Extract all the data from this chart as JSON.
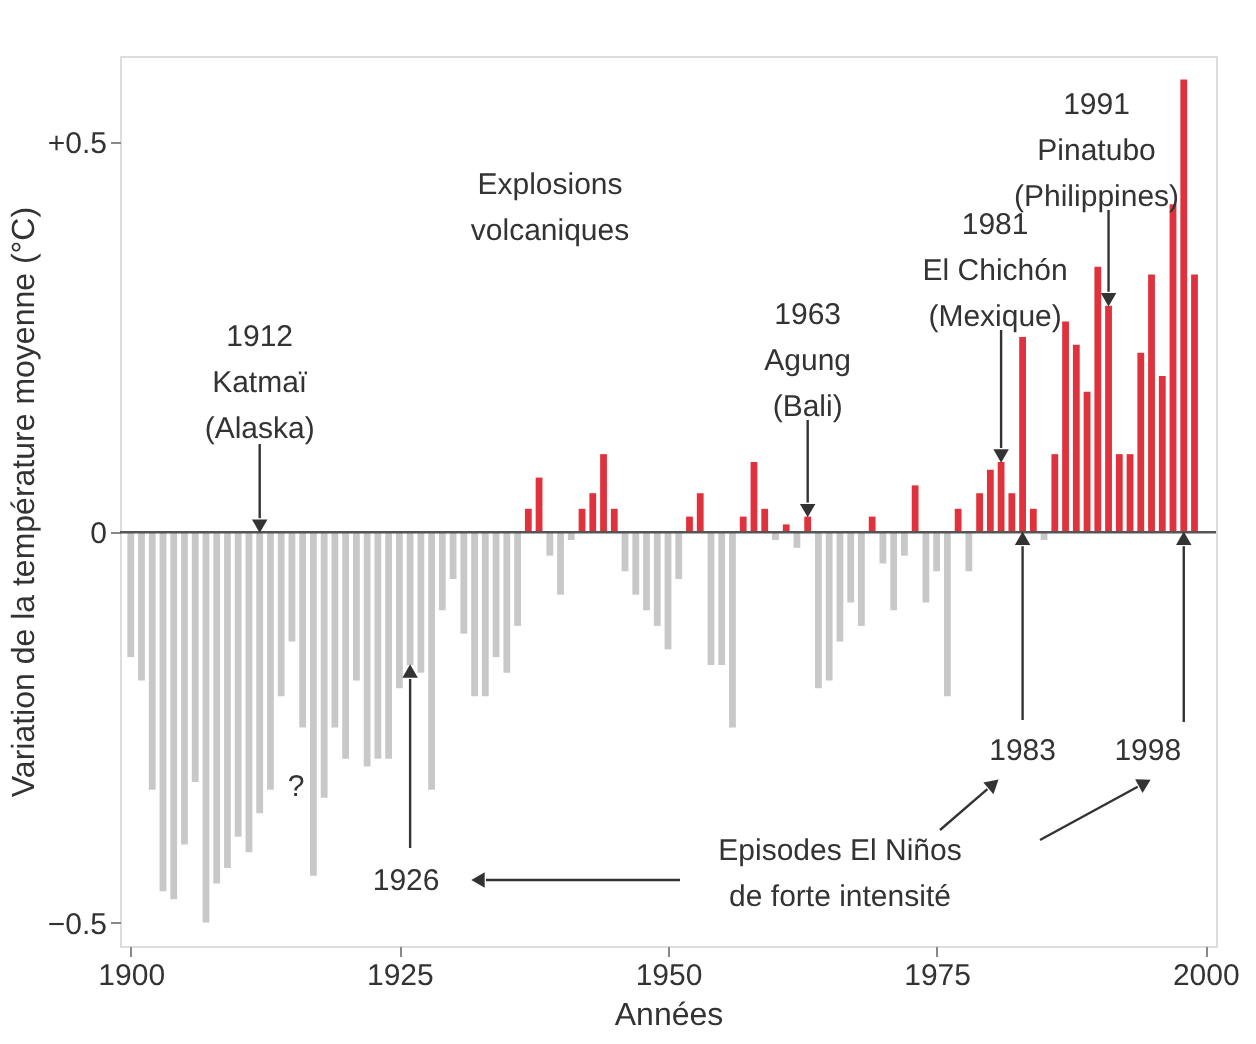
{
  "chart_data": {
    "type": "bar",
    "xlabel": "Années",
    "ylabel": "Variation de la température moyenne (°C)",
    "x": [
      1900,
      1901,
      1902,
      1903,
      1904,
      1905,
      1906,
      1907,
      1908,
      1909,
      1910,
      1911,
      1912,
      1913,
      1914,
      1915,
      1916,
      1917,
      1918,
      1919,
      1920,
      1921,
      1922,
      1923,
      1924,
      1925,
      1926,
      1927,
      1928,
      1929,
      1930,
      1931,
      1932,
      1933,
      1934,
      1935,
      1936,
      1937,
      1938,
      1939,
      1940,
      1941,
      1942,
      1943,
      1944,
      1945,
      1946,
      1947,
      1948,
      1949,
      1950,
      1951,
      1952,
      1953,
      1954,
      1955,
      1956,
      1957,
      1958,
      1959,
      1960,
      1961,
      1962,
      1963,
      1964,
      1965,
      1966,
      1967,
      1968,
      1969,
      1970,
      1971,
      1972,
      1973,
      1974,
      1975,
      1976,
      1977,
      1978,
      1979,
      1980,
      1981,
      1982,
      1983,
      1984,
      1985,
      1986,
      1987,
      1988,
      1989,
      1990,
      1991,
      1992,
      1993,
      1994,
      1995,
      1996,
      1997,
      1998,
      1999
    ],
    "values": [
      -0.16,
      -0.19,
      -0.33,
      -0.46,
      -0.47,
      -0.4,
      -0.32,
      -0.5,
      -0.45,
      -0.43,
      -0.39,
      -0.41,
      -0.36,
      -0.33,
      -0.21,
      -0.14,
      -0.25,
      -0.44,
      -0.34,
      -0.25,
      -0.29,
      -0.19,
      -0.3,
      -0.29,
      -0.29,
      -0.2,
      -0.17,
      -0.18,
      -0.33,
      -0.1,
      -0.06,
      -0.13,
      -0.21,
      -0.21,
      -0.16,
      -0.18,
      -0.12,
      0.03,
      0.07,
      -0.03,
      -0.08,
      -0.01,
      0.03,
      0.05,
      0.1,
      0.03,
      -0.05,
      -0.08,
      -0.1,
      -0.12,
      -0.15,
      -0.06,
      0.02,
      0.05,
      -0.17,
      -0.17,
      -0.25,
      0.02,
      0.09,
      0.03,
      -0.01,
      0.01,
      -0.02,
      0.02,
      -0.2,
      -0.19,
      -0.14,
      -0.09,
      -0.12,
      0.02,
      -0.04,
      -0.1,
      -0.03,
      0.06,
      -0.09,
      -0.05,
      -0.21,
      0.03,
      -0.05,
      0.05,
      0.08,
      0.09,
      0.05,
      0.25,
      0.03,
      -0.01,
      0.1,
      0.27,
      0.24,
      0.18,
      0.34,
      0.29,
      0.1,
      0.1,
      0.23,
      0.33,
      0.2,
      0.42,
      0.58,
      0.33
    ],
    "colors": [
      "#c8c8c8",
      "#c8c8c8",
      "#c8c8c8",
      "#c8c8c8",
      "#c8c8c8",
      "#c8c8c8",
      "#c8c8c8",
      "#c8c8c8",
      "#c8c8c8",
      "#c8c8c8",
      "#c8c8c8",
      "#c8c8c8",
      "#c8c8c8",
      "#c8c8c8",
      "#c8c8c8",
      "#c8c8c8",
      "#c8c8c8",
      "#c8c8c8",
      "#c8c8c8",
      "#c8c8c8",
      "#c8c8c8",
      "#c8c8c8",
      "#c8c8c8",
      "#c8c8c8",
      "#c8c8c8",
      "#c8c8c8",
      "#c8c8c8",
      "#c8c8c8",
      "#c8c8c8",
      "#c8c8c8",
      "#c8c8c8",
      "#c8c8c8",
      "#c8c8c8",
      "#c8c8c8",
      "#c8c8c8",
      "#c8c8c8",
      "#c8c8c8",
      "#e0323c",
      "#e0323c",
      "#c8c8c8",
      "#c8c8c8",
      "#c8c8c8",
      "#e0323c",
      "#e0323c",
      "#e0323c",
      "#e0323c",
      "#c8c8c8",
      "#c8c8c8",
      "#c8c8c8",
      "#c8c8c8",
      "#c8c8c8",
      "#c8c8c8",
      "#e0323c",
      "#e0323c",
      "#c8c8c8",
      "#c8c8c8",
      "#c8c8c8",
      "#e0323c",
      "#e0323c",
      "#e0323c",
      "#c8c8c8",
      "#e0323c",
      "#c8c8c8",
      "#e0323c",
      "#c8c8c8",
      "#c8c8c8",
      "#c8c8c8",
      "#c8c8c8",
      "#c8c8c8",
      "#e0323c",
      "#c8c8c8",
      "#c8c8c8",
      "#c8c8c8",
      "#e0323c",
      "#c8c8c8",
      "#c8c8c8",
      "#c8c8c8",
      "#e0323c",
      "#c8c8c8",
      "#e0323c",
      "#e0323c",
      "#e0323c",
      "#e0323c",
      "#e0323c",
      "#e0323c",
      "#c8c8c8",
      "#e0323c",
      "#e0323c",
      "#e0323c",
      "#e0323c",
      "#e0323c",
      "#e0323c",
      "#e0323c",
      "#e0323c",
      "#e0323c",
      "#e0323c",
      "#e0323c",
      "#e0323c",
      "#e0323c",
      "#e0323c"
    ],
    "xlim": [
      1899,
      2001
    ],
    "xticks": [
      1900,
      1925,
      1950,
      1975,
      2000
    ],
    "ylim": [
      -0.53,
      0.61
    ],
    "yticks": [
      {
        "value": 0.5,
        "label": "+0.5"
      },
      {
        "value": 0,
        "label": "0"
      },
      -0.5
    ],
    "grid": false,
    "ref_lines": [
      {
        "axis": "y",
        "value": 0,
        "color": "#555555"
      }
    ],
    "annotations": [
      "Explosions\nvolcaniques",
      {
        "text": "1912\nKatmaï\n(Alaska)",
        "x": 1912,
        "y": 0
      },
      {
        "text": "1963\nAgung\n(Bali)",
        "x": 1963,
        "y": 0.02
      },
      {
        "text": "1981\nEl Chichón\n(Mexique)",
        "x": 1981,
        "y": 0.09
      },
      {
        "text": "1991\nPinatubo\n(Philippines)",
        "x": 1991,
        "y": 0.29
      },
      {
        "text": "1983",
        "x": 1983,
        "y": 0
      },
      {
        "text": "1998",
        "x": 1998,
        "y": 0
      },
      {
        "text": "1926",
        "x": 1926,
        "y": -0.17
      },
      "Episodes El Niños\nde forte intensité",
      "?"
    ]
  }
}
